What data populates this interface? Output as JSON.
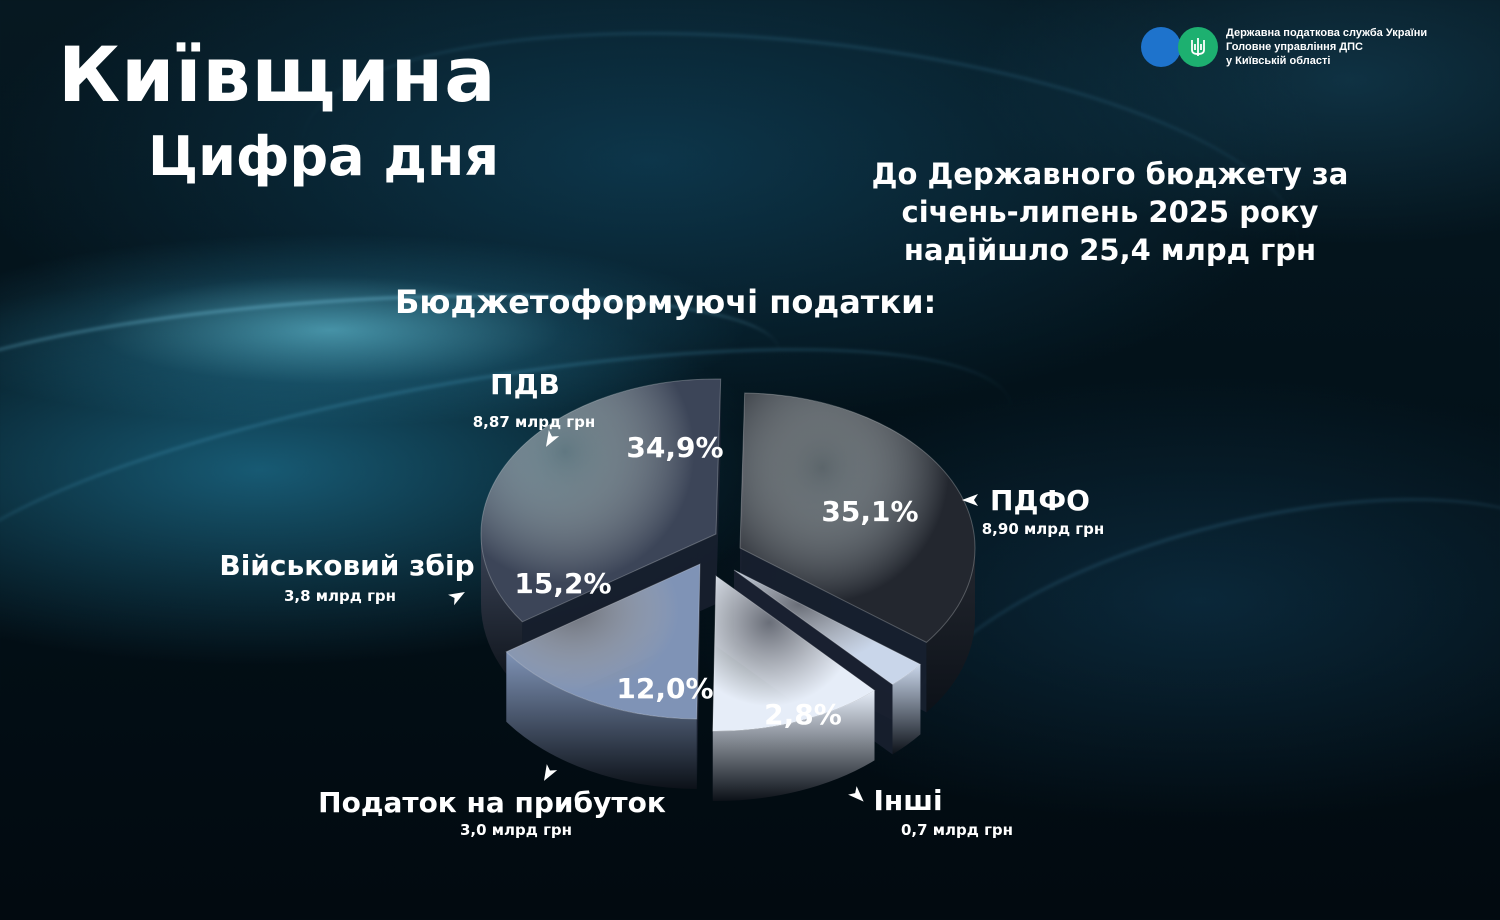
{
  "header": {
    "region_title": "Київщина",
    "subtitle": "Цифра дня"
  },
  "logo": {
    "line1": "Державна податкова служба України",
    "line2": "Головне управління ДПС",
    "line3": "у Київській області"
  },
  "headline": {
    "line1": "До Державного  бюджету за",
    "line2": "січень-липень 2025 року",
    "line3": "надійшло 25,4 млрд грн"
  },
  "chart_data": {
    "type": "pie",
    "title": "Бюджетоформуючі податки:",
    "series": [
      {
        "name": "ПДФО",
        "percent": 35.1,
        "percent_label": "35,1%",
        "amount_label": "8,90 млрд грн"
      },
      {
        "name": "Інші",
        "percent": 2.8,
        "percent_label": "2,8%",
        "amount_label": "0,7 млрд грн"
      },
      {
        "name": "Податок на прибуток",
        "percent": 12.0,
        "percent_label": "12,0%",
        "amount_label": "3,0 млрд грн"
      },
      {
        "name": "Військовий збір",
        "percent": 15.2,
        "percent_label": "15,2%",
        "amount_label": "3,8 млрд грн"
      },
      {
        "name": "ПДВ",
        "percent": 34.9,
        "percent_label": "34,9%",
        "amount_label": "8,87 млрд грн"
      }
    ],
    "colors": {
      "ПДФО": "#23272f",
      "Інші": "#c9d6ea",
      "Податок на прибуток": "#e6edf8",
      "Військовий збір": "#7f93b6",
      "ПДВ": "#3c4558"
    }
  }
}
